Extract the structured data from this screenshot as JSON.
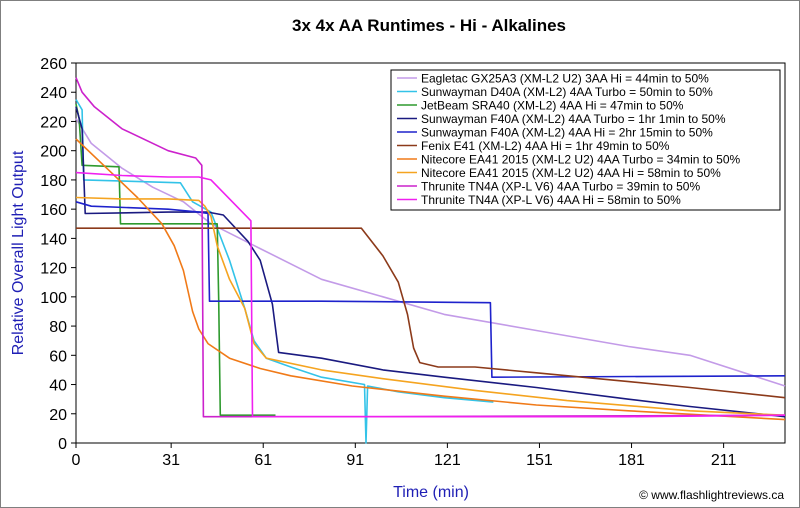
{
  "chart_data": {
    "type": "line",
    "title": "3x 4x AA Runtimes - Hi - Alkalines",
    "xlabel": "Time (min)",
    "ylabel": "Relative Overall Light Output",
    "xlim": [
      0,
      231
    ],
    "ylim": [
      0,
      260
    ],
    "xticks": [
      0,
      31,
      61,
      91,
      121,
      151,
      181,
      211
    ],
    "yticks": [
      0,
      20,
      40,
      60,
      80,
      100,
      120,
      140,
      160,
      180,
      200,
      220,
      240,
      260
    ],
    "grid": false,
    "legend_position": "top-right",
    "credit": "© www.flashlightreviews.ca",
    "series": [
      {
        "name": "Eagletac GX25A3 (XM-L2 U2) 3AA Hi = 44min to 50%",
        "color": "#c39be8",
        "points": [
          [
            0,
            222
          ],
          [
            5,
            205
          ],
          [
            15,
            188
          ],
          [
            25,
            175
          ],
          [
            35,
            165
          ],
          [
            44,
            150
          ],
          [
            60,
            133
          ],
          [
            80,
            112
          ],
          [
            100,
            100
          ],
          [
            120,
            88
          ],
          [
            150,
            77
          ],
          [
            180,
            66
          ],
          [
            200,
            60
          ],
          [
            231,
            39
          ]
        ]
      },
      {
        "name": "Sunwayman D40A (XM-L2) 4AA Turbo = 50min to 50%",
        "color": "#33c3e8",
        "points": [
          [
            0,
            235
          ],
          [
            2,
            228
          ],
          [
            2.5,
            180
          ],
          [
            34,
            178
          ],
          [
            38,
            165
          ],
          [
            44,
            158
          ],
          [
            50,
            125
          ],
          [
            55,
            92
          ],
          [
            58,
            70
          ],
          [
            62,
            58
          ],
          [
            70,
            52
          ],
          [
            80,
            45
          ],
          [
            94,
            40
          ],
          [
            94.5,
            0
          ],
          [
            95,
            39
          ],
          [
            105,
            35
          ],
          [
            120,
            31
          ],
          [
            136,
            28
          ]
        ]
      },
      {
        "name": "JetBeam SRA40 (XM-L2) 4AA Hi = 47min to 50%",
        "color": "#2e9a2e",
        "points": [
          [
            0,
            232
          ],
          [
            1,
            222
          ],
          [
            2,
            190
          ],
          [
            14,
            189
          ],
          [
            14.5,
            150
          ],
          [
            46,
            150
          ],
          [
            46.5,
            98
          ],
          [
            47,
            19
          ],
          [
            65,
            19
          ]
        ]
      },
      {
        "name": "Sunwayman F40A (XM-L2) 4AA Turbo = 1hr 1min to 50%",
        "color": "#1a1a80",
        "points": [
          [
            0,
            230
          ],
          [
            2,
            215
          ],
          [
            3,
            157
          ],
          [
            30,
            158
          ],
          [
            43,
            158
          ],
          [
            48,
            156
          ],
          [
            56,
            138
          ],
          [
            60,
            125
          ],
          [
            64,
            95
          ],
          [
            66,
            62
          ],
          [
            80,
            58
          ],
          [
            100,
            50
          ],
          [
            120,
            45
          ],
          [
            150,
            38
          ],
          [
            180,
            30
          ],
          [
            200,
            25
          ],
          [
            231,
            18
          ]
        ]
      },
      {
        "name": "Sunwayman F40A (XM-L2) 4AA Hi = 2hr 15min to 50%",
        "color": "#1e22cc",
        "points": [
          [
            0,
            165
          ],
          [
            5,
            162
          ],
          [
            30,
            160
          ],
          [
            40,
            158
          ],
          [
            43,
            157
          ],
          [
            43.5,
            97
          ],
          [
            80,
            97
          ],
          [
            135,
            96
          ],
          [
            135.5,
            45
          ],
          [
            231,
            46
          ]
        ]
      },
      {
        "name": "Fenix E41 (XM-L2) 4AA Hi = 1hr 49min to 50%",
        "color": "#8c3a1a",
        "points": [
          [
            0,
            147
          ],
          [
            80,
            147
          ],
          [
            93,
            147
          ],
          [
            100,
            128
          ],
          [
            105,
            110
          ],
          [
            108,
            88
          ],
          [
            110,
            65
          ],
          [
            112,
            55
          ],
          [
            118,
            52
          ],
          [
            130,
            52
          ],
          [
            150,
            48
          ],
          [
            180,
            42
          ],
          [
            200,
            38
          ],
          [
            231,
            31
          ]
        ]
      },
      {
        "name": "Nitecore EA41 2015 (XM-L2 U2) 4AA Turbo = 34min to 50%",
        "color": "#f07a18",
        "points": [
          [
            0,
            208
          ],
          [
            10,
            188
          ],
          [
            20,
            168
          ],
          [
            28,
            150
          ],
          [
            32,
            135
          ],
          [
            35,
            118
          ],
          [
            38,
            90
          ],
          [
            40,
            78
          ],
          [
            43,
            68
          ],
          [
            50,
            58
          ],
          [
            60,
            51
          ],
          [
            70,
            46
          ],
          [
            90,
            39
          ],
          [
            120,
            32
          ],
          [
            150,
            26
          ],
          [
            180,
            22
          ],
          [
            231,
            16
          ]
        ]
      },
      {
        "name": "Nitecore EA41 2015 (XM-L2 U2) 4AA Hi = 58min to 50%",
        "color": "#f5a420",
        "points": [
          [
            0,
            168
          ],
          [
            15,
            167
          ],
          [
            30,
            167
          ],
          [
            40,
            166
          ],
          [
            42,
            162
          ],
          [
            44,
            155
          ],
          [
            46,
            135
          ],
          [
            50,
            112
          ],
          [
            55,
            92
          ],
          [
            58,
            68
          ],
          [
            62,
            58
          ],
          [
            80,
            50
          ],
          [
            100,
            44
          ],
          [
            130,
            36
          ],
          [
            160,
            29
          ],
          [
            200,
            22
          ],
          [
            231,
            19
          ]
        ]
      },
      {
        "name": "Thrunite TN4A (XP-L V6) 4AA Turbo = 39min to 50%",
        "color": "#cc22cc",
        "points": [
          [
            0,
            250
          ],
          [
            2,
            240
          ],
          [
            6,
            230
          ],
          [
            15,
            215
          ],
          [
            30,
            200
          ],
          [
            39,
            195
          ],
          [
            41,
            190
          ],
          [
            41.5,
            18
          ],
          [
            100,
            18
          ],
          [
            231,
            19
          ]
        ]
      },
      {
        "name": "Thrunite TN4A (XP-L V6) 4AA Hi = 58min to 50%",
        "color": "#f020f0",
        "points": [
          [
            0,
            185
          ],
          [
            15,
            183
          ],
          [
            30,
            182
          ],
          [
            40,
            182
          ],
          [
            44,
            180
          ],
          [
            57,
            152
          ],
          [
            57.5,
            18
          ],
          [
            100,
            18
          ],
          [
            180,
            18
          ],
          [
            231,
            19
          ]
        ]
      }
    ]
  }
}
